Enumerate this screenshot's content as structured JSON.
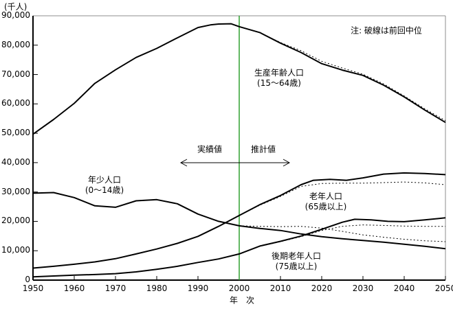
{
  "unit_label": "(千人)",
  "note": "注: 破線は前回中位",
  "x_axis_title": "年　次",
  "period": {
    "actual": "実績値",
    "projected": "推計値"
  },
  "annotations": {
    "working_age": {
      "line1": "生産年齢人口",
      "line2": "(15～64歳)"
    },
    "young": {
      "line1": "年少人口",
      "line2": "(0～14歳)"
    },
    "elderly": {
      "line1": "老年人口",
      "line2": "(65歳以上)"
    },
    "late_elderly": {
      "line1": "後期老年人口",
      "line2": "(75歳以上)"
    }
  },
  "chart_data": {
    "type": "line",
    "title": "",
    "xlabel": "年　次",
    "ylabel": "(千人)",
    "xlim": [
      1950,
      2050
    ],
    "ylim": [
      0,
      90000
    ],
    "grid": false,
    "legend_position": "none",
    "divider_year": 2000,
    "divider_color": "#2fa12f",
    "line_color": "#000000",
    "x_ticks": [
      1950,
      1960,
      1970,
      1980,
      1990,
      2000,
      2010,
      2020,
      2030,
      2040,
      2050
    ],
    "y_ticks": [
      {
        "value": 0,
        "label": "0"
      },
      {
        "value": 10000,
        "label": "10,000"
      },
      {
        "value": 20000,
        "label": "20,000"
      },
      {
        "value": 30000,
        "label": "30,000"
      },
      {
        "value": 40000,
        "label": "40,000"
      },
      {
        "value": 50000,
        "label": "50,000"
      },
      {
        "value": 60000,
        "label": "60,000"
      },
      {
        "value": 70000,
        "label": "70,000"
      },
      {
        "value": 80000,
        "label": "80,000"
      },
      {
        "value": 90000,
        "label": "90,000"
      }
    ],
    "series": [
      {
        "id": "working-age",
        "name": "生産年齢人口(15～64歳)",
        "style": "solid",
        "points": [
          [
            1950,
            49700
          ],
          [
            1955,
            54700
          ],
          [
            1960,
            60200
          ],
          [
            1965,
            67000
          ],
          [
            1970,
            71600
          ],
          [
            1975,
            75800
          ],
          [
            1980,
            78900
          ],
          [
            1985,
            82500
          ],
          [
            1990,
            86000
          ],
          [
            1993,
            86900
          ],
          [
            1995,
            87200
          ],
          [
            1998,
            87300
          ],
          [
            2000,
            86300
          ],
          [
            2005,
            84300
          ],
          [
            2010,
            80700
          ],
          [
            2015,
            77500
          ],
          [
            2020,
            73700
          ],
          [
            2025,
            71500
          ],
          [
            2030,
            69700
          ],
          [
            2035,
            66400
          ],
          [
            2040,
            62400
          ],
          [
            2045,
            57900
          ],
          [
            2050,
            53700
          ]
        ]
      },
      {
        "id": "working-age-prev",
        "name": "生産年齢人口(前回中位)",
        "style": "dashed",
        "points": [
          [
            2000,
            86300
          ],
          [
            2005,
            84200
          ],
          [
            2010,
            80900
          ],
          [
            2015,
            78100
          ],
          [
            2020,
            74500
          ],
          [
            2025,
            72200
          ],
          [
            2030,
            70100
          ],
          [
            2035,
            66800
          ],
          [
            2040,
            62700
          ],
          [
            2045,
            58300
          ],
          [
            2050,
            54300
          ]
        ]
      },
      {
        "id": "young",
        "name": "年少人口(0～14歳)",
        "style": "solid",
        "points": [
          [
            1950,
            29600
          ],
          [
            1955,
            29800
          ],
          [
            1960,
            28100
          ],
          [
            1965,
            25300
          ],
          [
            1970,
            24800
          ],
          [
            1975,
            27000
          ],
          [
            1980,
            27400
          ],
          [
            1985,
            26000
          ],
          [
            1990,
            22500
          ],
          [
            1995,
            20000
          ],
          [
            2000,
            18500
          ],
          [
            2005,
            17600
          ],
          [
            2010,
            16900
          ],
          [
            2015,
            15700
          ],
          [
            2020,
            14800
          ],
          [
            2025,
            14100
          ],
          [
            2030,
            13500
          ],
          [
            2035,
            12900
          ],
          [
            2040,
            12200
          ],
          [
            2045,
            11500
          ],
          [
            2050,
            10700
          ]
        ]
      },
      {
        "id": "young-prev",
        "name": "年少人口(前回中位)",
        "style": "dashed",
        "points": [
          [
            2000,
            18500
          ],
          [
            2005,
            18300
          ],
          [
            2010,
            18200
          ],
          [
            2015,
            18300
          ],
          [
            2020,
            17700
          ],
          [
            2025,
            16600
          ],
          [
            2030,
            15400
          ],
          [
            2035,
            14600
          ],
          [
            2040,
            13900
          ],
          [
            2045,
            13400
          ],
          [
            2050,
            13100
          ]
        ]
      },
      {
        "id": "elderly",
        "name": "老年人口(65歳以上)",
        "style": "solid",
        "points": [
          [
            1950,
            4100
          ],
          [
            1955,
            4700
          ],
          [
            1960,
            5400
          ],
          [
            1965,
            6200
          ],
          [
            1970,
            7300
          ],
          [
            1975,
            8900
          ],
          [
            1980,
            10600
          ],
          [
            1985,
            12500
          ],
          [
            1990,
            14900
          ],
          [
            1995,
            18300
          ],
          [
            2000,
            22000
          ],
          [
            2005,
            25700
          ],
          [
            2010,
            28800
          ],
          [
            2015,
            32500
          ],
          [
            2018,
            34000
          ],
          [
            2022,
            34300
          ],
          [
            2026,
            34000
          ],
          [
            2030,
            34800
          ],
          [
            2035,
            36100
          ],
          [
            2040,
            36500
          ],
          [
            2045,
            36300
          ],
          [
            2050,
            35900
          ]
        ]
      },
      {
        "id": "elderly-prev",
        "name": "老年人口(前回中位)",
        "style": "dashed",
        "points": [
          [
            2000,
            22000
          ],
          [
            2005,
            25500
          ],
          [
            2010,
            28500
          ],
          [
            2015,
            31900
          ],
          [
            2020,
            32900
          ],
          [
            2025,
            33000
          ],
          [
            2030,
            33000
          ],
          [
            2035,
            33200
          ],
          [
            2040,
            33400
          ],
          [
            2045,
            33100
          ],
          [
            2050,
            32500
          ]
        ]
      },
      {
        "id": "late-elderly",
        "name": "後期老年人口(75歳以上)",
        "style": "solid",
        "points": [
          [
            1950,
            1100
          ],
          [
            1955,
            1400
          ],
          [
            1960,
            1700
          ],
          [
            1965,
            1900
          ],
          [
            1970,
            2200
          ],
          [
            1975,
            2800
          ],
          [
            1980,
            3700
          ],
          [
            1985,
            4700
          ],
          [
            1990,
            6000
          ],
          [
            1995,
            7200
          ],
          [
            2000,
            8900
          ],
          [
            2005,
            11600
          ],
          [
            2010,
            13200
          ],
          [
            2015,
            15000
          ],
          [
            2020,
            17300
          ],
          [
            2025,
            19700
          ],
          [
            2028,
            20700
          ],
          [
            2032,
            20500
          ],
          [
            2036,
            20000
          ],
          [
            2040,
            19900
          ],
          [
            2045,
            20500
          ],
          [
            2050,
            21200
          ]
        ]
      },
      {
        "id": "late-elderly-prev",
        "name": "後期老年人口(前回中位)",
        "style": "dashed",
        "points": [
          [
            2000,
            8900
          ],
          [
            2005,
            11500
          ],
          [
            2010,
            13100
          ],
          [
            2015,
            14800
          ],
          [
            2020,
            16900
          ],
          [
            2025,
            18300
          ],
          [
            2030,
            18800
          ],
          [
            2035,
            18600
          ],
          [
            2040,
            18400
          ],
          [
            2045,
            18300
          ],
          [
            2050,
            18300
          ]
        ]
      }
    ]
  }
}
